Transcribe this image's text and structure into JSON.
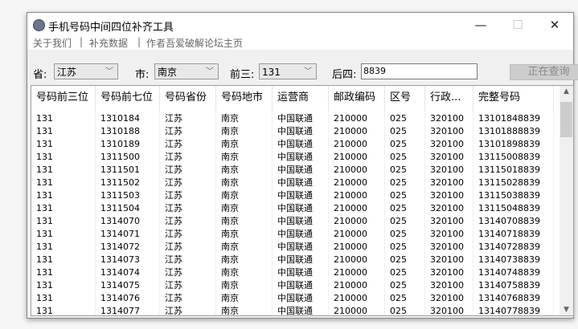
{
  "window": {
    "title": "手机号码中间四位补齐工具",
    "minimize": "—",
    "maximize": "☐",
    "close": "✕"
  },
  "menu": [
    "关于我们",
    "|",
    "补充数据",
    "|",
    "作者吾爱破解论坛主页"
  ],
  "filters": {
    "province_label": "省:",
    "province": "江苏",
    "city_label": "市:",
    "city": "南京",
    "prefix_label": "前三:",
    "prefix": "131",
    "suffix_label": "后四:",
    "suffix": "8839",
    "query_button": "正在查询"
  },
  "table": {
    "columns": [
      "号码前三位",
      "号码前七位",
      "号码省份",
      "号码地市",
      "运营商",
      "邮政编码",
      "区号",
      "行政...",
      "完整号码"
    ],
    "rows": [
      [
        "131",
        "1310184",
        "江苏",
        "南京",
        "中国联通",
        "210000",
        "025",
        "320100",
        "13101848839"
      ],
      [
        "131",
        "1310188",
        "江苏",
        "南京",
        "中国联通",
        "210000",
        "025",
        "320100",
        "13101888839"
      ],
      [
        "131",
        "1310189",
        "江苏",
        "南京",
        "中国联通",
        "210000",
        "025",
        "320100",
        "13101898839"
      ],
      [
        "131",
        "1311500",
        "江苏",
        "南京",
        "中国联通",
        "210000",
        "025",
        "320100",
        "13115008839"
      ],
      [
        "131",
        "1311501",
        "江苏",
        "南京",
        "中国联通",
        "210000",
        "025",
        "320100",
        "13115018839"
      ],
      [
        "131",
        "1311502",
        "江苏",
        "南京",
        "中国联通",
        "210000",
        "025",
        "320100",
        "13115028839"
      ],
      [
        "131",
        "1311503",
        "江苏",
        "南京",
        "中国联通",
        "210000",
        "025",
        "320100",
        "13115038839"
      ],
      [
        "131",
        "1311504",
        "江苏",
        "南京",
        "中国联通",
        "210000",
        "025",
        "320100",
        "13115048839"
      ],
      [
        "131",
        "1314070",
        "江苏",
        "南京",
        "中国联通",
        "210000",
        "025",
        "320100",
        "13140708839"
      ],
      [
        "131",
        "1314071",
        "江苏",
        "南京",
        "中国联通",
        "210000",
        "025",
        "320100",
        "13140718839"
      ],
      [
        "131",
        "1314072",
        "江苏",
        "南京",
        "中国联通",
        "210000",
        "025",
        "320100",
        "13140728839"
      ],
      [
        "131",
        "1314073",
        "江苏",
        "南京",
        "中国联通",
        "210000",
        "025",
        "320100",
        "13140738839"
      ],
      [
        "131",
        "1314074",
        "江苏",
        "南京",
        "中国联通",
        "210000",
        "025",
        "320100",
        "13140748839"
      ],
      [
        "131",
        "1314075",
        "江苏",
        "南京",
        "中国联通",
        "210000",
        "025",
        "320100",
        "13140758839"
      ],
      [
        "131",
        "1314076",
        "江苏",
        "南京",
        "中国联通",
        "210000",
        "025",
        "320100",
        "13140768839"
      ],
      [
        "131",
        "1314077",
        "江苏",
        "南京",
        "中国联通",
        "210000",
        "025",
        "320100",
        "13140778839"
      ]
    ]
  }
}
